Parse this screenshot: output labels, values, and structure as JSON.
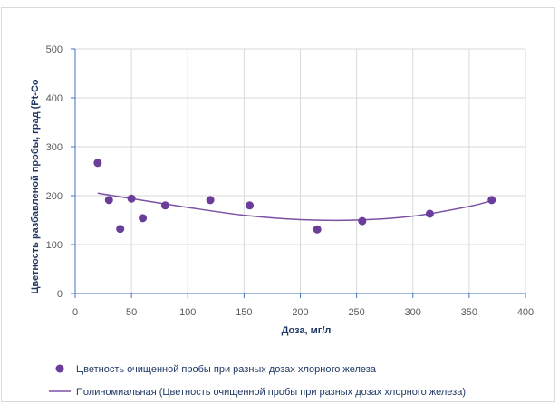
{
  "chart_data": {
    "type": "scatter",
    "xlabel": "Доза, мг/л",
    "ylabel": "Цветность разбавленой пробы, град (Pt-Co",
    "xlim": [
      0,
      400
    ],
    "ylim": [
      0,
      500
    ],
    "x_ticks": [
      "0",
      "50",
      "100",
      "150",
      "200",
      "250",
      "300",
      "350",
      "400"
    ],
    "y_ticks": [
      "0",
      "100",
      "200",
      "300",
      "400",
      "500"
    ],
    "grid": true,
    "legend_position": "bottom",
    "series": [
      {
        "name": "Цветность очищенной пробы при разных дозах хлорного железа",
        "color": "#6a3d9a",
        "x": [
          20,
          30,
          40,
          50,
          60,
          80,
          120,
          155,
          215,
          255,
          315,
          370
        ],
        "y": [
          267,
          191,
          132,
          194,
          154,
          180,
          191,
          180,
          131,
          148,
          163,
          191
        ]
      }
    ],
    "trendline": {
      "name": "Полиномиальная (Цветность очищенной пробы при разных дозах хлорного железа)",
      "color": "#7b52a3",
      "x_range": [
        20,
        370
      ],
      "x": [
        20,
        50,
        100,
        150,
        200,
        250,
        300,
        350,
        370
      ],
      "y": [
        205,
        194,
        176,
        160,
        151,
        150,
        158,
        178,
        190
      ]
    }
  }
}
